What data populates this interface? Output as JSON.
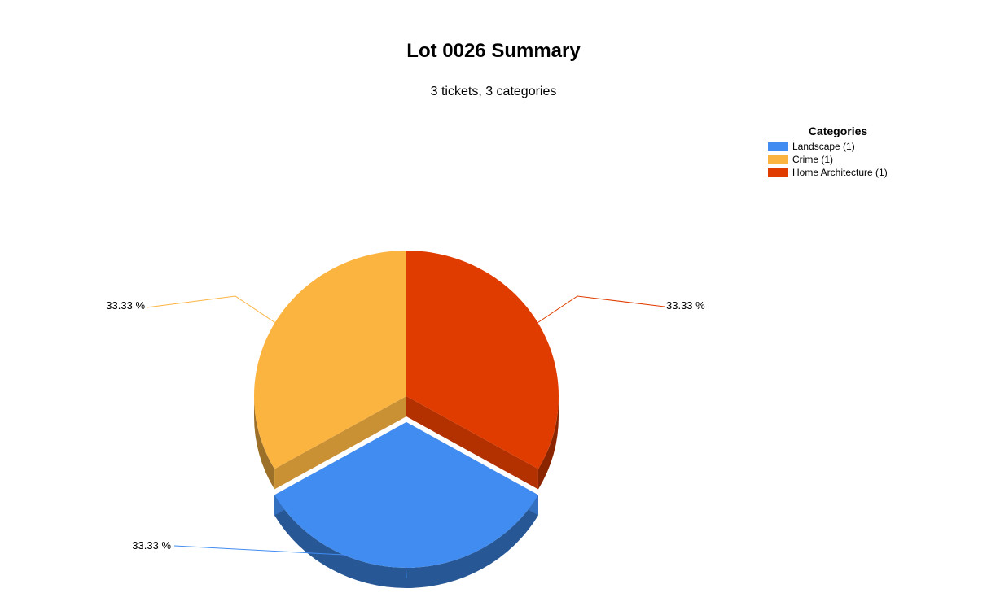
{
  "chart_data": {
    "type": "pie",
    "title": "Lot 0026 Summary",
    "subtitle": "3 tickets, 3 categories",
    "legend": {
      "title": "Categories",
      "placement": "top-right"
    },
    "exploded_slice": "Landscape",
    "slices": [
      {
        "label": "Landscape",
        "legend_text": "Landscape (1)",
        "value": 1,
        "percent_text": "33.33 %",
        "color": "#418CF0"
      },
      {
        "label": "Crime",
        "legend_text": "Crime (1)",
        "value": 1,
        "percent_text": "33.33 %",
        "color": "#FCB441"
      },
      {
        "label": "Home Architecture",
        "legend_text": "Home Architecture (1)",
        "value": 1,
        "percent_text": "33.33 %",
        "color": "#E03C00"
      }
    ]
  }
}
